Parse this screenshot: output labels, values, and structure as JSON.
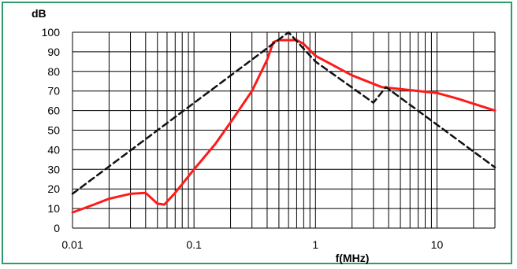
{
  "chart_data": {
    "type": "line",
    "title": "",
    "xlabel": "f(MHz)",
    "ylabel": "dB",
    "x_scale": "log",
    "xlim": [
      0.01,
      30
    ],
    "ylim": [
      0,
      100
    ],
    "x_tick_labels": [
      "0.01",
      "0.1",
      "1",
      "10"
    ],
    "x_ticks": [
      0.01,
      0.1,
      1,
      10
    ],
    "y_ticks": [
      0,
      10,
      20,
      30,
      40,
      50,
      60,
      70,
      80,
      90,
      100
    ],
    "y_tick_labels": [
      "0",
      "10",
      "20",
      "30",
      "40",
      "50",
      "60",
      "70",
      "80",
      "90",
      "100"
    ],
    "grid": true,
    "legend": "none",
    "series": [
      {
        "color": "#ff1a1a",
        "style": "solid",
        "points": [
          [
            0.01,
            8
          ],
          [
            0.015,
            12
          ],
          [
            0.02,
            15
          ],
          [
            0.03,
            17.5
          ],
          [
            0.04,
            18
          ],
          [
            0.05,
            12.5
          ],
          [
            0.057,
            12
          ],
          [
            0.07,
            18
          ],
          [
            0.1,
            30
          ],
          [
            0.15,
            43
          ],
          [
            0.2,
            54
          ],
          [
            0.3,
            70
          ],
          [
            0.4,
            86
          ],
          [
            0.45,
            95
          ],
          [
            0.5,
            96
          ],
          [
            0.7,
            96
          ],
          [
            0.8,
            94
          ],
          [
            1,
            88
          ],
          [
            2,
            78
          ],
          [
            3.5,
            72
          ],
          [
            5,
            71
          ],
          [
            10,
            69
          ],
          [
            15,
            66
          ],
          [
            30,
            60
          ]
        ]
      },
      {
        "color": "#111111",
        "style": "dashed",
        "points": [
          [
            0.01,
            17.5
          ],
          [
            0.6,
            100
          ],
          [
            1,
            85
          ],
          [
            3,
            64
          ],
          [
            3.8,
            72
          ],
          [
            30,
            31
          ]
        ]
      }
    ]
  }
}
